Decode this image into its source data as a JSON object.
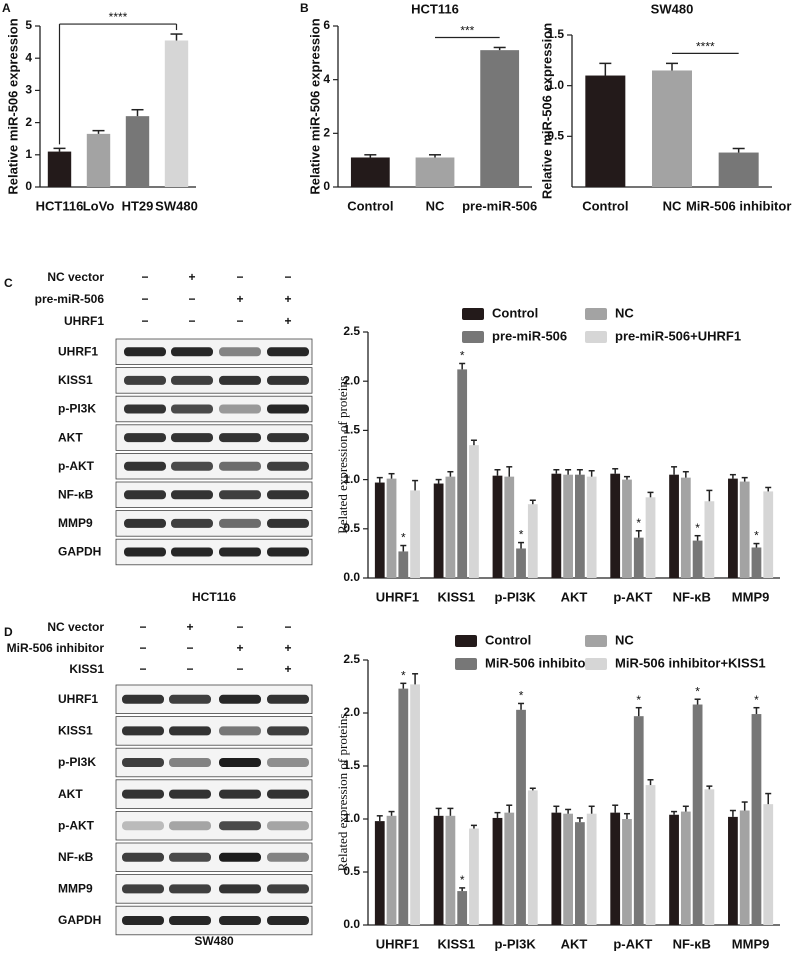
{
  "panel_labels": [
    "A",
    "B",
    "C",
    "D"
  ],
  "blots": [
    {
      "conditions": [
        {
          "name": "NC vector",
          "marks": [
            "−",
            "+",
            "−",
            "−"
          ]
        },
        {
          "name": "pre-miR-506",
          "marks": [
            "−",
            "−",
            "+",
            "+"
          ]
        },
        {
          "name": "UHRF1",
          "marks": [
            "−",
            "−",
            "−",
            "+"
          ]
        }
      ],
      "proteins": [
        "UHRF1",
        "KISS1",
        "p-PI3K",
        "AKT",
        "p-AKT",
        "NF-κB",
        "MMP9",
        "GAPDH"
      ],
      "cell_line": "HCT116"
    },
    {
      "conditions": [
        {
          "name": "NC vector",
          "marks": [
            "−",
            "+",
            "−",
            "−"
          ]
        },
        {
          "name": "MiR-506 inhibitor",
          "marks": [
            "−",
            "−",
            "+",
            "+"
          ]
        },
        {
          "name": "KISS1",
          "marks": [
            "−",
            "−",
            "−",
            "+"
          ]
        }
      ],
      "proteins": [
        "UHRF1",
        "KISS1",
        "p-PI3K",
        "AKT",
        "p-AKT",
        "NF-κB",
        "MMP9",
        "GAPDH"
      ],
      "cell_line": "SW480"
    }
  ],
  "chart_data": [
    {
      "type": "bar",
      "ylabel": "Relative miR-506 expression",
      "categories": [
        "HCT116",
        "LoVo",
        "HT29",
        "SW480"
      ],
      "values": [
        1.1,
        1.65,
        2.2,
        4.55
      ],
      "errors": [
        0.1,
        0.1,
        0.2,
        0.2
      ],
      "colors": [
        "#231a1a",
        "#a3a3a3",
        "#777777",
        "#d6d6d6"
      ],
      "ylim": [
        0,
        5
      ],
      "yticks": [
        0,
        1,
        2,
        3,
        4,
        5
      ],
      "brackets": [
        {
          "label": "****",
          "from": "HCT116",
          "to": "SW480"
        }
      ]
    },
    {
      "type": "bar",
      "title": "HCT116",
      "ylabel": "Relative miR-506 expression",
      "categories": [
        "Control",
        "NC",
        "pre-miR-506"
      ],
      "values": [
        1.1,
        1.1,
        5.1
      ],
      "errors": [
        0.1,
        0.1,
        0.1
      ],
      "colors": [
        "#231a1a",
        "#a3a3a3",
        "#777777"
      ],
      "ylim": [
        0,
        6
      ],
      "yticks": [
        0,
        2,
        4,
        6
      ],
      "brackets": [
        {
          "label": "***",
          "from": "NC",
          "to": "pre-miR-506"
        }
      ]
    },
    {
      "type": "bar",
      "title": "SW480",
      "ylabel": "Relative miR-506 expression",
      "categories": [
        "Control",
        "NC",
        "MiR-506 inhibitor"
      ],
      "values": [
        1.1,
        1.15,
        0.34
      ],
      "errors": [
        0.12,
        0.07,
        0.04
      ],
      "colors": [
        "#231a1a",
        "#a3a3a3",
        "#777777"
      ],
      "ylim": [
        0,
        1.5
      ],
      "yticks": [
        0.5,
        {
          "value": 1,
          "label": "1.0"
        },
        1.5
      ],
      "brackets": [
        {
          "label": "****",
          "from": "NC",
          "to": "MiR-506 inhibitor"
        }
      ]
    },
    {
      "type": "grouped_bar",
      "ylabel": "Related expression of proteins",
      "categories": [
        "UHRF1",
        "KISS1",
        "p-PI3K",
        "AKT",
        "p-AKT",
        "NF-κB",
        "MMP9"
      ],
      "series": [
        {
          "name": "Control",
          "color": "#231a1a",
          "values": [
            0.97,
            0.96,
            1.04,
            1.06,
            1.06,
            1.05,
            1.01
          ],
          "errors": [
            0.05,
            0.04,
            0.06,
            0.04,
            0.05,
            0.08,
            0.04
          ]
        },
        {
          "name": "NC",
          "color": "#a3a3a3",
          "values": [
            1.01,
            1.03,
            1.03,
            1.05,
            1.0,
            1.02,
            0.98
          ],
          "errors": [
            0.05,
            0.05,
            0.1,
            0.05,
            0.03,
            0.06,
            0.04
          ]
        },
        {
          "name": "pre-miR-506",
          "color": "#777777",
          "values": [
            0.27,
            2.12,
            0.3,
            1.05,
            0.41,
            0.38,
            0.31
          ],
          "errors": [
            0.06,
            0.06,
            0.06,
            0.05,
            0.07,
            0.05,
            0.04
          ],
          "stars": [
            "*",
            "*",
            "*",
            null,
            "*",
            "*",
            "*"
          ]
        },
        {
          "name": "pre-miR-506+UHRF1",
          "color": "#d6d6d6",
          "values": [
            0.89,
            1.35,
            0.75,
            1.03,
            0.82,
            0.78,
            0.88
          ],
          "errors": [
            0.1,
            0.05,
            0.04,
            0.06,
            0.05,
            0.11,
            0.04
          ]
        }
      ],
      "ylim": [
        0,
        2.5
      ],
      "yticks": [
        {
          "value": 0,
          "label": "0.0"
        },
        0.5,
        {
          "value": 1,
          "label": "1.0"
        },
        1.5,
        {
          "value": 2,
          "label": "2.0"
        },
        2.5
      ]
    },
    {
      "type": "grouped_bar",
      "ylabel": "Related expression of proteins",
      "categories": [
        "UHRF1",
        "KISS1",
        "p-PI3K",
        "AKT",
        "p-AKT",
        "NF-κB",
        "MMP9"
      ],
      "series": [
        {
          "name": "Control",
          "color": "#231a1a",
          "values": [
            0.98,
            1.03,
            1.01,
            1.06,
            1.06,
            1.04,
            1.02
          ],
          "errors": [
            0.05,
            0.07,
            0.05,
            0.06,
            0.07,
            0.03,
            0.06
          ]
        },
        {
          "name": "NC",
          "color": "#a3a3a3",
          "values": [
            1.03,
            1.03,
            1.06,
            1.05,
            1.0,
            1.07,
            1.08
          ],
          "errors": [
            0.04,
            0.07,
            0.07,
            0.04,
            0.05,
            0.05,
            0.08
          ]
        },
        {
          "name": "MiR-506 inhibitor",
          "color": "#777777",
          "values": [
            2.23,
            0.32,
            2.03,
            0.97,
            1.97,
            2.08,
            1.99
          ],
          "errors": [
            0.05,
            0.03,
            0.06,
            0.04,
            0.08,
            0.05,
            0.06
          ],
          "stars": [
            "*",
            "*",
            "*",
            null,
            "*",
            "*",
            "*"
          ]
        },
        {
          "name": "MiR-506 inhibitor+KISS1",
          "color": "#d6d6d6",
          "values": [
            2.27,
            0.91,
            1.27,
            1.05,
            1.32,
            1.28,
            1.14
          ],
          "errors": [
            0.1,
            0.03,
            0.02,
            0.07,
            0.05,
            0.03,
            0.1
          ]
        }
      ],
      "ylim": [
        0,
        2.5
      ],
      "yticks": [
        {
          "value": 0,
          "label": "0.0"
        },
        0.5,
        {
          "value": 1,
          "label": "1.0"
        },
        1.5,
        {
          "value": 2,
          "label": "2.0"
        },
        2.5
      ]
    }
  ]
}
